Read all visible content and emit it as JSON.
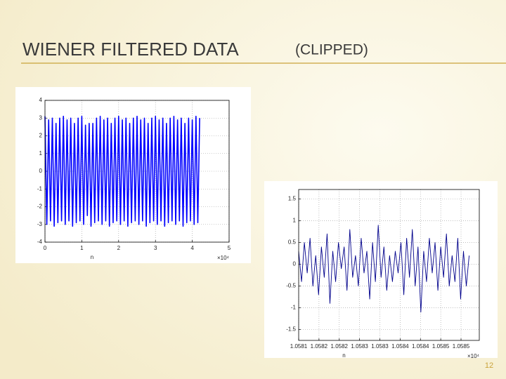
{
  "title": "WIENER FILTERED DATA",
  "title_suffix": "(CLIPPED)",
  "page_number": "12",
  "chart_data": [
    {
      "type": "line",
      "xlabel": "n",
      "x_multiplier": "×10⁴",
      "xlim": [
        0,
        5
      ],
      "ylim": [
        -4,
        4
      ],
      "xticks": [
        0,
        1,
        2,
        3,
        4,
        5
      ],
      "yticks": [
        -4,
        -3,
        -2,
        -1,
        0,
        1,
        2,
        3,
        4
      ],
      "grid": true,
      "x": [
        0,
        0.05,
        0.1,
        0.15,
        0.2,
        0.25,
        0.3,
        0.35,
        0.4,
        0.45,
        0.5,
        0.55,
        0.6,
        0.65,
        0.7,
        0.75,
        0.8,
        0.85,
        0.9,
        0.95,
        1,
        1.05,
        1.1,
        1.15,
        1.2,
        1.25,
        1.3,
        1.35,
        1.4,
        1.45,
        1.5,
        1.55,
        1.6,
        1.65,
        1.7,
        1.75,
        1.8,
        1.85,
        1.9,
        1.95,
        2,
        2.05,
        2.1,
        2.15,
        2.2,
        2.25,
        2.3,
        2.35,
        2.4,
        2.45,
        2.5,
        2.55,
        2.6,
        2.65,
        2.7,
        2.75,
        2.8,
        2.85,
        2.9,
        2.95,
        3,
        3.05,
        3.1,
        3.15,
        3.2,
        3.25,
        3.3,
        3.35,
        3.4,
        3.45,
        3.5,
        3.55,
        3.6,
        3.65,
        3.7,
        3.75,
        3.8,
        3.85,
        3.9,
        3.95,
        4,
        4.05,
        4.1,
        4.15,
        4.2
      ],
      "series": [
        {
          "color": "#0000ff",
          "values": [
            3.1,
            -3.0,
            2.9,
            -2.8,
            3.0,
            -3.1,
            2.7,
            -2.9,
            3.0,
            -2.8,
            3.1,
            -3.0,
            2.9,
            -2.8,
            3.0,
            -3.1,
            2.7,
            -2.9,
            3.0,
            -2.8,
            3.1,
            -3.0,
            2.6,
            -2.5,
            2.7,
            -3.1,
            2.7,
            -2.9,
            3.0,
            -2.8,
            3.1,
            -3.0,
            2.9,
            -2.8,
            3.0,
            -3.1,
            2.7,
            -2.9,
            3.0,
            -2.8,
            3.1,
            -3.0,
            2.9,
            -2.8,
            3.0,
            -3.1,
            2.7,
            -2.9,
            3.0,
            -2.8,
            3.1,
            -3.0,
            2.9,
            -2.8,
            3.0,
            -3.1,
            2.7,
            -2.9,
            3.0,
            -2.8,
            3.1,
            -3.0,
            2.9,
            -2.8,
            3.0,
            -3.1,
            2.7,
            -2.9,
            3.0,
            -2.8,
            3.1,
            -3.0,
            2.9,
            -2.8,
            3.0,
            -3.1,
            2.7,
            -2.9,
            3.0,
            -2.8,
            2.9,
            -3.0,
            3.1,
            -2.9,
            3.0
          ]
        }
      ]
    },
    {
      "type": "line",
      "xlabel": "n",
      "x_multiplier": "×10⁴",
      "xlim": [
        1.0581,
        1.058545
      ],
      "ylim": [
        -1.75,
        1.72
      ],
      "xticks": [
        {
          "value": 1.0581,
          "label": "1.0581"
        },
        {
          "value": 1.05815,
          "label": "1.0582"
        },
        {
          "value": 1.0582,
          "label": "1.0582"
        },
        {
          "value": 1.05825,
          "label": "1.0583"
        },
        {
          "value": 1.0583,
          "label": "1.0583"
        },
        {
          "value": 1.05835,
          "label": "1.0584"
        },
        {
          "value": 1.0584,
          "label": "1.0584"
        },
        {
          "value": 1.05845,
          "label": "1.0585"
        },
        {
          "value": 1.0585,
          "label": "1.0585"
        }
      ],
      "yticks": [
        -1.5,
        -1,
        -0.5,
        0,
        0.5,
        1,
        1.5
      ],
      "grid": true,
      "x": [
        1.0581,
        1.058107,
        1.058114,
        1.058121,
        1.058128,
        1.058135,
        1.058142,
        1.058149,
        1.058156,
        1.058163,
        1.05817,
        1.058177,
        1.058184,
        1.058191,
        1.058198,
        1.058205,
        1.058212,
        1.058219,
        1.058226,
        1.058233,
        1.05824,
        1.058247,
        1.058254,
        1.058261,
        1.058268,
        1.058275,
        1.058282,
        1.058289,
        1.058296,
        1.058303,
        1.05831,
        1.058317,
        1.058324,
        1.058331,
        1.058338,
        1.058345,
        1.058352,
        1.058359,
        1.058366,
        1.058373,
        1.05838,
        1.058387,
        1.058394,
        1.058401,
        1.058408,
        1.058415,
        1.058422,
        1.058429,
        1.058436,
        1.058443,
        1.05845,
        1.058457,
        1.058464,
        1.058471,
        1.058478,
        1.058485,
        1.058492,
        1.058499,
        1.058506,
        1.058513,
        1.05852
      ],
      "series": [
        {
          "color": "#00008b",
          "values": [
            0.3,
            -0.4,
            0.5,
            -0.2,
            0.6,
            -0.5,
            0.2,
            -0.7,
            0.4,
            -0.3,
            0.7,
            -0.9,
            0.3,
            -0.4,
            0.5,
            -0.1,
            0.4,
            -0.6,
            0.8,
            -0.3,
            0.2,
            -0.5,
            0.6,
            -0.2,
            0.3,
            -0.8,
            0.5,
            -0.4,
            0.9,
            -0.3,
            0.4,
            -0.6,
            0.2,
            -0.4,
            0.3,
            -0.2,
            0.5,
            -0.7,
            0.6,
            -0.3,
            0.8,
            -0.5,
            0.4,
            -1.1,
            0.3,
            -0.4,
            0.6,
            -0.2,
            0.5,
            -0.6,
            0.4,
            -0.3,
            0.7,
            -0.5,
            0.2,
            -0.4,
            0.6,
            -0.8,
            0.3,
            -0.5,
            0.2
          ]
        }
      ]
    }
  ]
}
